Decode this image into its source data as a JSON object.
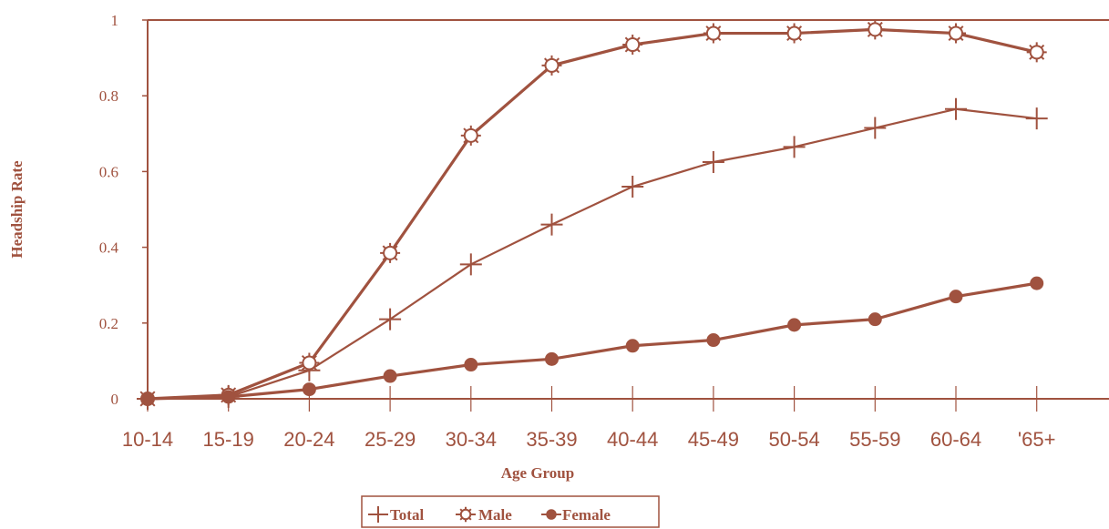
{
  "colors": {
    "line": "#a0523f",
    "background": "#ffffff"
  },
  "chart_data": {
    "type": "line",
    "xlabel": "Age Group",
    "ylabel": "Headship Rate",
    "ylim": [
      0,
      1
    ],
    "yticks": [
      "0",
      "0.2",
      "0.4",
      "0.6",
      "0.8",
      "1"
    ],
    "grid": false,
    "legend_position": "bottom",
    "categories": [
      "10-14",
      "15-19",
      "20-24",
      "25-29",
      "30-34",
      "35-39",
      "40-44",
      "45-49",
      "50-54",
      "55-59",
      "60-64",
      "'65+"
    ],
    "series": [
      {
        "name": "Total",
        "marker": "plus",
        "values": [
          0.0,
          0.005,
          0.075,
          0.21,
          0.355,
          0.46,
          0.56,
          0.625,
          0.665,
          0.715,
          0.765,
          0.74
        ]
      },
      {
        "name": "Male",
        "marker": "star",
        "values": [
          0.0,
          0.01,
          0.095,
          0.385,
          0.695,
          0.88,
          0.935,
          0.965,
          0.965,
          0.975,
          0.965,
          0.915
        ]
      },
      {
        "name": "Female",
        "marker": "circle",
        "values": [
          0.0,
          0.005,
          0.025,
          0.06,
          0.09,
          0.105,
          0.14,
          0.155,
          0.195,
          0.21,
          0.27,
          0.305
        ]
      }
    ]
  }
}
